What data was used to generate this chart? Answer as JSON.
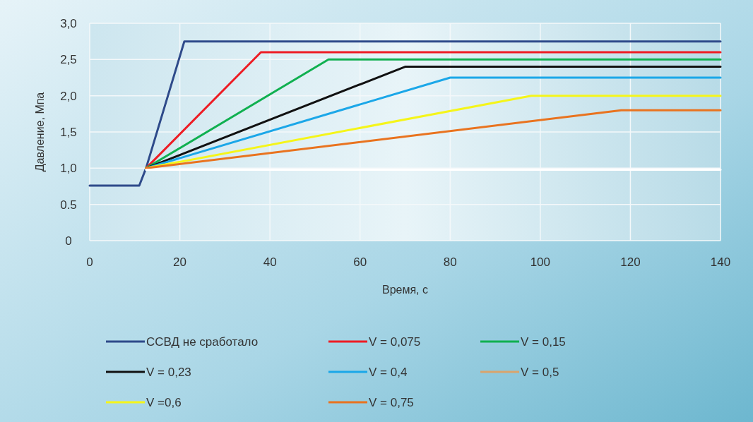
{
  "chart_data": {
    "type": "line",
    "xlabel": "Время, с",
    "ylabel": "Давление, Мпа",
    "xlim": [
      0,
      140
    ],
    "xticks": [
      0,
      20,
      40,
      60,
      80,
      100,
      120,
      140
    ],
    "ylim": [
      0,
      3
    ],
    "yticks": [
      0,
      {
        "value": 0.5,
        "label": "0.5"
      },
      {
        "value": 1,
        "label": "1,0"
      },
      {
        "value": 1.5,
        "label": "1,5"
      },
      {
        "value": 2,
        "label": "2,0"
      },
      {
        "value": 2.5,
        "label": "2,5"
      },
      {
        "value": 3,
        "label": "3,0"
      }
    ],
    "grid": true,
    "legend": "bottom",
    "marker": "none",
    "line_style": "solid",
    "series": [
      {
        "name": "ССВД не сработало",
        "color": "#2e4a8a",
        "x": [
          0,
          11,
          12.5,
          21,
          140
        ],
        "values": [
          0.76,
          0.76,
          1,
          2.75,
          2.75
        ]
      },
      {
        "name": "V = 0,075",
        "color": "#ee1c24",
        "x": [
          12.5,
          38,
          140
        ],
        "values": [
          1,
          2.6,
          2.6
        ]
      },
      {
        "name": "V = 0,15",
        "color": "#10b050",
        "x": [
          12.5,
          53,
          140
        ],
        "values": [
          1,
          2.5,
          2.5
        ]
      },
      {
        "name": "V = 0,23",
        "color": "#111111",
        "x": [
          12.5,
          70,
          140
        ],
        "values": [
          1,
          2.4,
          2.4
        ]
      },
      {
        "name": "V = 0,4",
        "color": "#1ba7e8",
        "x": [
          12.5,
          80,
          140
        ],
        "values": [
          1,
          2.25,
          2.25
        ]
      },
      {
        "name": "V = 0,5",
        "color": "#d9a46c"
      },
      {
        "name": "V =0,6",
        "color": "#f5f51a",
        "x": [
          12.5,
          98,
          140
        ],
        "values": [
          1,
          2,
          2
        ]
      },
      {
        "name": "V = 0,75",
        "color": "#e9731f",
        "x": [
          12.5,
          118,
          140
        ],
        "values": [
          1,
          1.8,
          1.8
        ]
      },
      {
        "color": "#ffffff",
        "x": [
          12.5,
          140
        ],
        "values": [
          0.98,
          0.98
        ]
      }
    ]
  }
}
